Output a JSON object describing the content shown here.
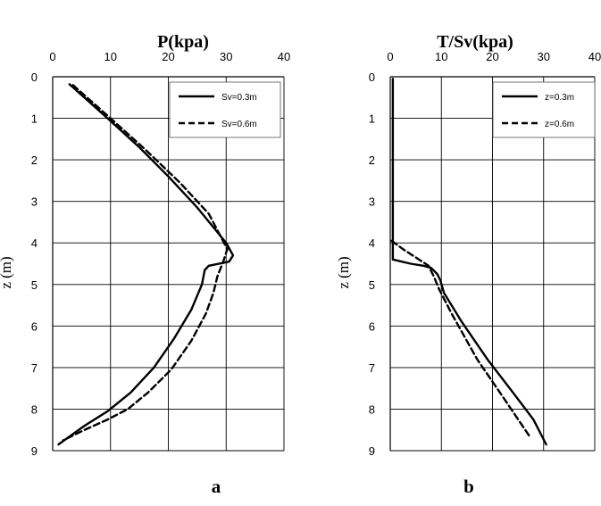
{
  "chart_data": [
    {
      "type": "line",
      "panel": "a",
      "title": "P(kpa)",
      "xlabel": "",
      "ylabel": "z (m)",
      "xlim": [
        0,
        40
      ],
      "ylim": [
        0,
        9
      ],
      "y_inverted": true,
      "x_ticks": [
        0,
        10,
        20,
        30,
        40
      ],
      "y_ticks": [
        0,
        1,
        2,
        3,
        4,
        5,
        6,
        7,
        8,
        9
      ],
      "grid": true,
      "legend_position": "top-right",
      "series": [
        {
          "name": "Sv=0.3m",
          "style": "solid",
          "x": [
            2.9,
            9.5,
            15,
            20,
            25,
            30,
            31.2,
            30.5,
            27,
            26.3,
            25.8,
            24,
            21,
            17.5,
            13.5,
            9.5,
            5.5,
            1
          ],
          "y": [
            0.18,
            1.0,
            1.7,
            2.4,
            3.15,
            4.0,
            4.3,
            4.45,
            4.55,
            4.65,
            5.0,
            5.6,
            6.3,
            7.0,
            7.6,
            8.05,
            8.4,
            8.85
          ]
        },
        {
          "name": "Sv=0.6m",
          "style": "dashed",
          "x": [
            3.5,
            10,
            16,
            22,
            27,
            30.2,
            29.5,
            28.5,
            27.8,
            26.5,
            24,
            20.5,
            16.5,
            13,
            9.5,
            5.5,
            1.8
          ],
          "y": [
            0.2,
            1.0,
            1.75,
            2.55,
            3.3,
            4.15,
            4.45,
            4.8,
            5.2,
            5.7,
            6.35,
            7.05,
            7.6,
            8.0,
            8.25,
            8.5,
            8.75
          ]
        }
      ]
    },
    {
      "type": "line",
      "panel": "b",
      "title": "T/Sv(kpa)",
      "xlabel": "",
      "ylabel": "z (m)",
      "xlim": [
        0,
        40
      ],
      "ylim": [
        0,
        9
      ],
      "y_inverted": true,
      "x_ticks": [
        0,
        10,
        20,
        30,
        40
      ],
      "y_ticks": [
        0,
        1,
        2,
        3,
        4,
        5,
        6,
        7,
        8,
        9
      ],
      "grid": true,
      "legend_position": "top-right",
      "series": [
        {
          "name": "z=0.3m",
          "style": "solid",
          "x": [
            0.5,
            0.5,
            0.5,
            4,
            6.5,
            8,
            9.2,
            9.8,
            10.5,
            14,
            19,
            24,
            28,
            30.5
          ],
          "y": [
            0.05,
            2.0,
            4.4,
            4.5,
            4.55,
            4.6,
            4.75,
            4.9,
            5.2,
            5.9,
            6.8,
            7.6,
            8.25,
            8.85
          ]
        },
        {
          "name": "z=0.6m",
          "style": "dashed",
          "x": [
            0.3,
            2.5,
            5,
            7.5,
            8.5,
            9.5,
            12,
            17,
            22,
            27.5
          ],
          "y": [
            3.95,
            4.15,
            4.35,
            4.55,
            4.8,
            5.1,
            5.7,
            6.8,
            7.7,
            8.7
          ]
        }
      ]
    }
  ],
  "figure": {
    "panel_labels": [
      "a",
      "b"
    ],
    "line_color": "#000000",
    "grid_color": "#000000",
    "background": "#ffffff"
  }
}
